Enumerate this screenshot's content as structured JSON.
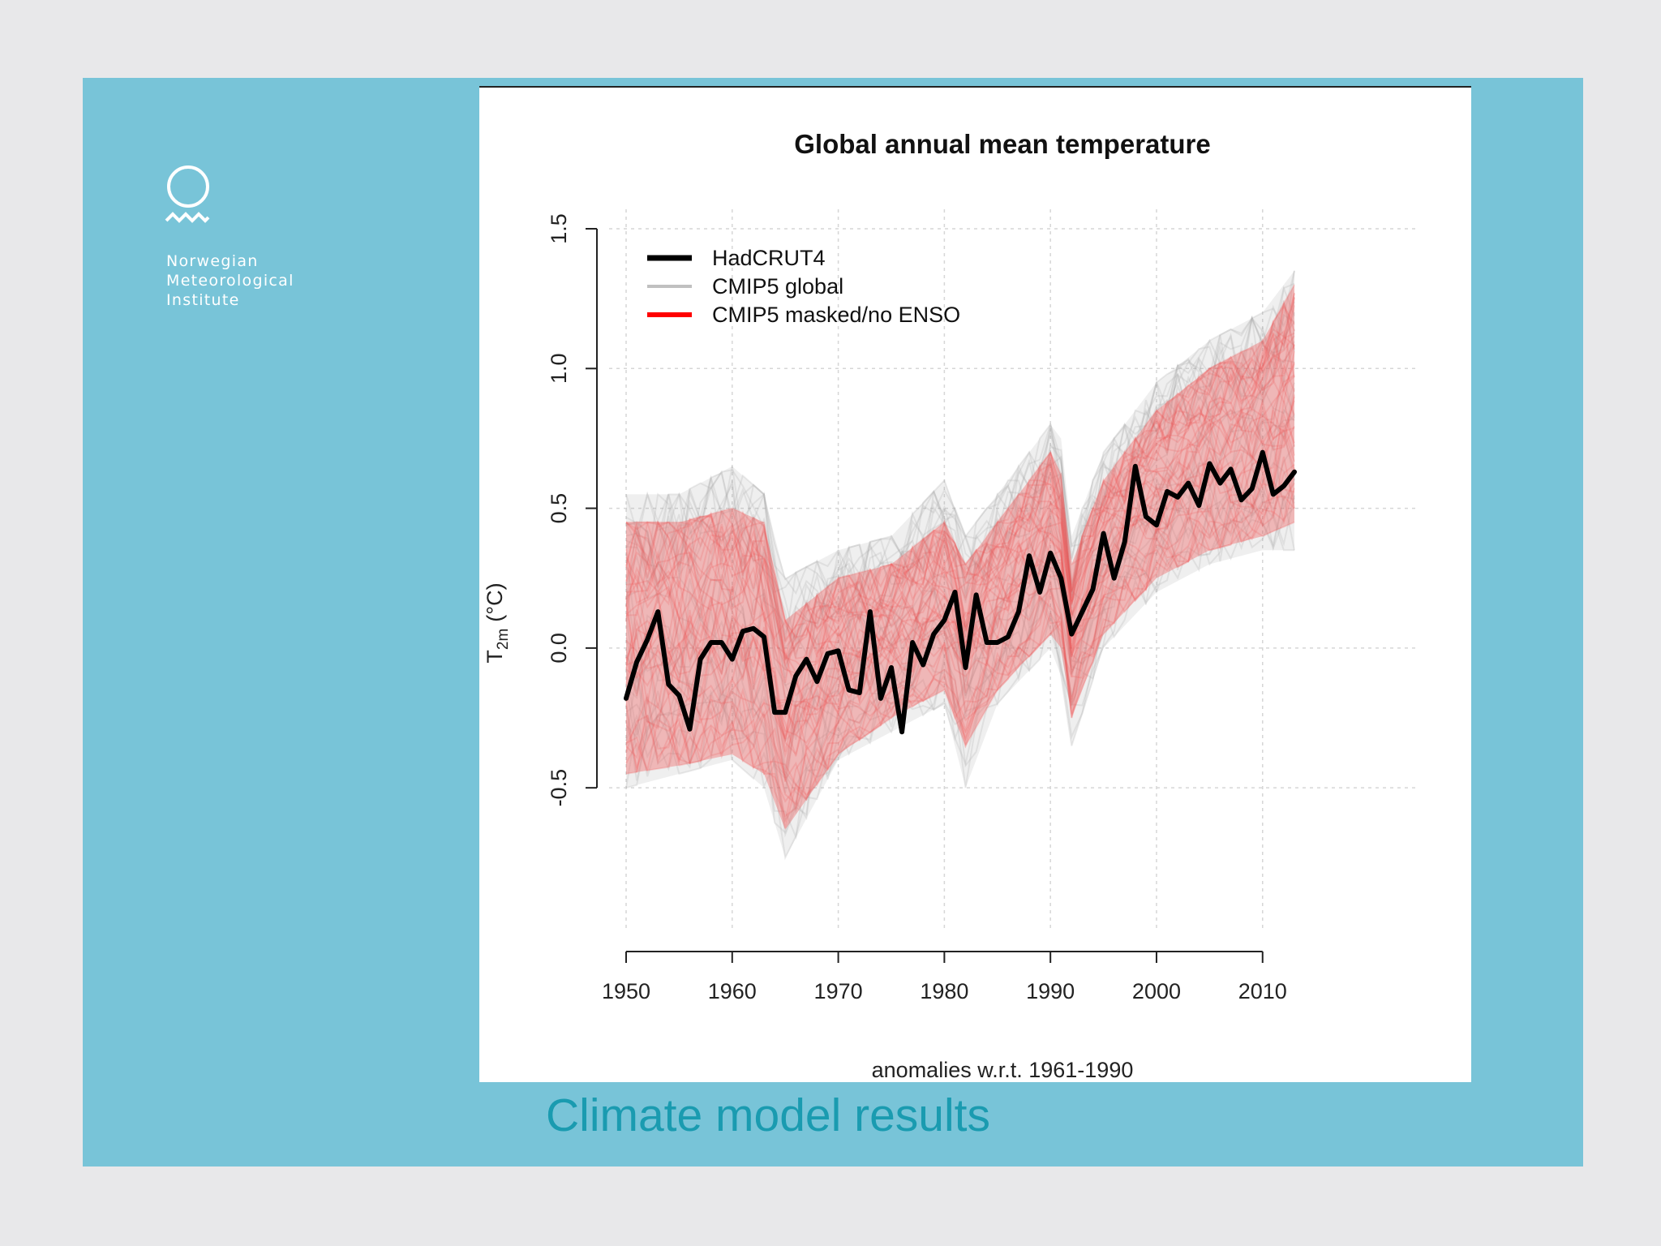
{
  "org": {
    "logo_icon": "sun-wave-icon",
    "name": "Norwegian\nMeteorological\nInstitute"
  },
  "caption": "Climate model results",
  "colors": {
    "slide_bg": "#78c4d8",
    "caption": "#1a9bb0",
    "hadcrut": "#000000",
    "cmip5_global": "#a8a8a8",
    "cmip5_masked": "#f05050"
  },
  "chart_data": {
    "type": "line",
    "title": "Global annual mean temperature",
    "xlabel": "anomalies w.r.t. 1961-1990",
    "ylabel": "T2m (°C)",
    "ylabel_main": "T",
    "ylabel_sub": "2m",
    "ylabel_unit": "(°C)",
    "xlim": [
      1950,
      2013
    ],
    "ylim": [
      -0.9,
      1.5
    ],
    "xticks": [
      1950,
      1960,
      1970,
      1980,
      1990,
      2000,
      2010
    ],
    "xtick_labels": [
      "1950",
      "1960",
      "1970",
      "1980",
      "1990",
      "2000",
      "2010"
    ],
    "yticks": [
      -0.5,
      0.0,
      0.5,
      1.0,
      1.5
    ],
    "ytick_labels": [
      "-0.5",
      "0.0",
      "0.5",
      "1.0",
      "1.5"
    ],
    "grid": true,
    "legend_position": "top-left",
    "legend": [
      {
        "label": "HadCRUT4",
        "color": "#000000"
      },
      {
        "label": "CMIP5 global",
        "color": "#c0c0c0"
      },
      {
        "label": "CMIP5 masked/no ENSO",
        "color": "#ff0000"
      }
    ],
    "series": [
      {
        "name": "HadCRUT4",
        "color": "#000000",
        "x": [
          1950,
          1951,
          1952,
          1953,
          1954,
          1955,
          1956,
          1957,
          1958,
          1959,
          1960,
          1961,
          1962,
          1963,
          1964,
          1965,
          1966,
          1967,
          1968,
          1969,
          1970,
          1971,
          1972,
          1973,
          1974,
          1975,
          1976,
          1977,
          1978,
          1979,
          1980,
          1981,
          1982,
          1983,
          1984,
          1985,
          1986,
          1987,
          1988,
          1989,
          1990,
          1991,
          1992,
          1993,
          1994,
          1995,
          1996,
          1997,
          1998,
          1999,
          2000,
          2001,
          2002,
          2003,
          2004,
          2005,
          2006,
          2007,
          2008,
          2009,
          2010,
          2011,
          2012,
          2013
        ],
        "y": [
          -0.18,
          -0.05,
          0.03,
          0.13,
          -0.13,
          -0.17,
          -0.29,
          -0.04,
          0.02,
          0.02,
          -0.04,
          0.06,
          0.07,
          0.04,
          -0.23,
          -0.23,
          -0.1,
          -0.04,
          -0.12,
          -0.02,
          -0.01,
          -0.15,
          -0.16,
          0.13,
          -0.18,
          -0.07,
          -0.3,
          0.02,
          -0.06,
          0.05,
          0.1,
          0.2,
          -0.07,
          0.19,
          0.02,
          0.02,
          0.04,
          0.13,
          0.33,
          0.2,
          0.34,
          0.25,
          0.05,
          0.13,
          0.21,
          0.41,
          0.25,
          0.38,
          0.65,
          0.47,
          0.44,
          0.56,
          0.54,
          0.59,
          0.51,
          0.66,
          0.59,
          0.64,
          0.53,
          0.57,
          0.7,
          0.55,
          0.58,
          0.63
        ]
      }
    ],
    "ensemble_bands": [
      {
        "name": "CMIP5 global",
        "color": "#a8a8a8",
        "x": [
          1950,
          1955,
          1960,
          1963,
          1965,
          1970,
          1975,
          1980,
          1982,
          1985,
          1990,
          1991,
          1992,
          1995,
          2000,
          2005,
          2010,
          2013
        ],
        "lower": [
          -0.5,
          -0.45,
          -0.4,
          -0.5,
          -0.75,
          -0.4,
          -0.3,
          -0.2,
          -0.5,
          -0.2,
          0.0,
          -0.1,
          -0.35,
          0.0,
          0.2,
          0.3,
          0.35,
          0.35
        ],
        "upper": [
          0.55,
          0.55,
          0.65,
          0.55,
          0.25,
          0.35,
          0.4,
          0.6,
          0.4,
          0.55,
          0.8,
          0.75,
          0.4,
          0.7,
          0.95,
          1.1,
          1.2,
          1.35
        ]
      },
      {
        "name": "CMIP5 masked/no ENSO",
        "color": "#f05050",
        "x": [
          1950,
          1955,
          1960,
          1963,
          1965,
          1970,
          1975,
          1980,
          1982,
          1985,
          1990,
          1991,
          1992,
          1995,
          2000,
          2005,
          2010,
          2013
        ],
        "lower": [
          -0.45,
          -0.42,
          -0.38,
          -0.45,
          -0.65,
          -0.38,
          -0.25,
          -0.15,
          -0.35,
          -0.15,
          0.05,
          0.0,
          -0.25,
          0.05,
          0.25,
          0.35,
          0.4,
          0.45
        ],
        "upper": [
          0.45,
          0.45,
          0.5,
          0.45,
          0.1,
          0.25,
          0.3,
          0.45,
          0.3,
          0.45,
          0.7,
          0.62,
          0.3,
          0.6,
          0.85,
          1.0,
          1.1,
          1.3
        ]
      }
    ]
  }
}
